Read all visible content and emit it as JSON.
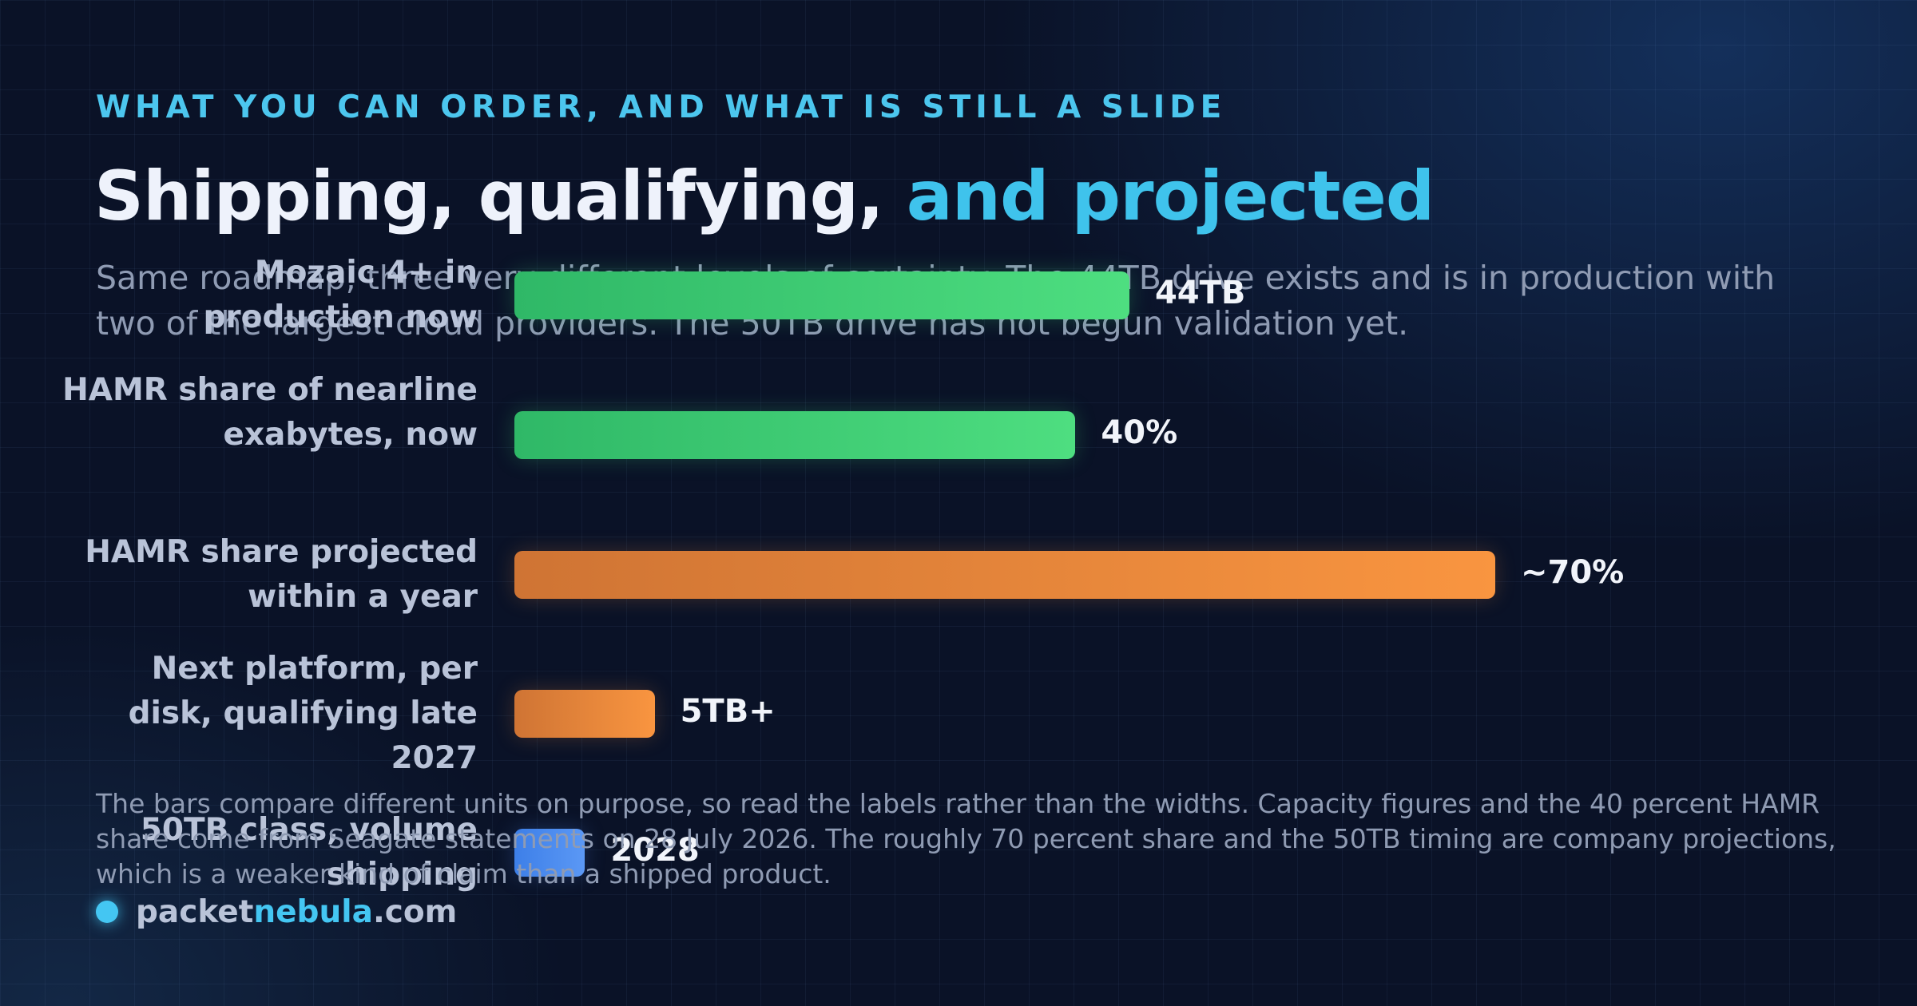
{
  "header": {
    "eyebrow": "WHAT YOU CAN ORDER, AND WHAT IS STILL A SLIDE",
    "title_main": "Shipping, qualifying, ",
    "title_accent": "and projected",
    "subtitle": "Same roadmap, three very different levels of certainty. The 44TB drive exists and is in production with two of the largest cloud providers. The 50TB drive has not begun validation yet."
  },
  "chart_data": {
    "type": "bar",
    "orientation": "horizontal",
    "categories": [
      "Mozaic 4+ in production now",
      "HAMR share of nearline exabytes, now",
      "HAMR share projected within a year",
      "Next platform, per disk, qualifying late 2027",
      "50TB class, volume shipping"
    ],
    "value_labels": [
      "44TB",
      "40%",
      "~70%",
      "5TB+",
      "2028"
    ],
    "relative_lengths": [
      0.627,
      0.572,
      1.0,
      0.143,
      0.072
    ],
    "bar_colors": [
      "#4ede80",
      "#4ede80",
      "#f99540",
      "#f99540",
      "#5b98f5"
    ],
    "grid": false
  },
  "footnote": "The bars compare different units on purpose, so read the labels rather than the widths. Capacity figures and the 40 percent HAMR share come from Seagate statements on 28 July 2026. The roughly 70 percent share and the 50TB timing are company projections, which is a weaker kind of claim than a shipped product.",
  "brand": {
    "prefix": "packet",
    "highlight": "nebula",
    "suffix": ".com"
  }
}
